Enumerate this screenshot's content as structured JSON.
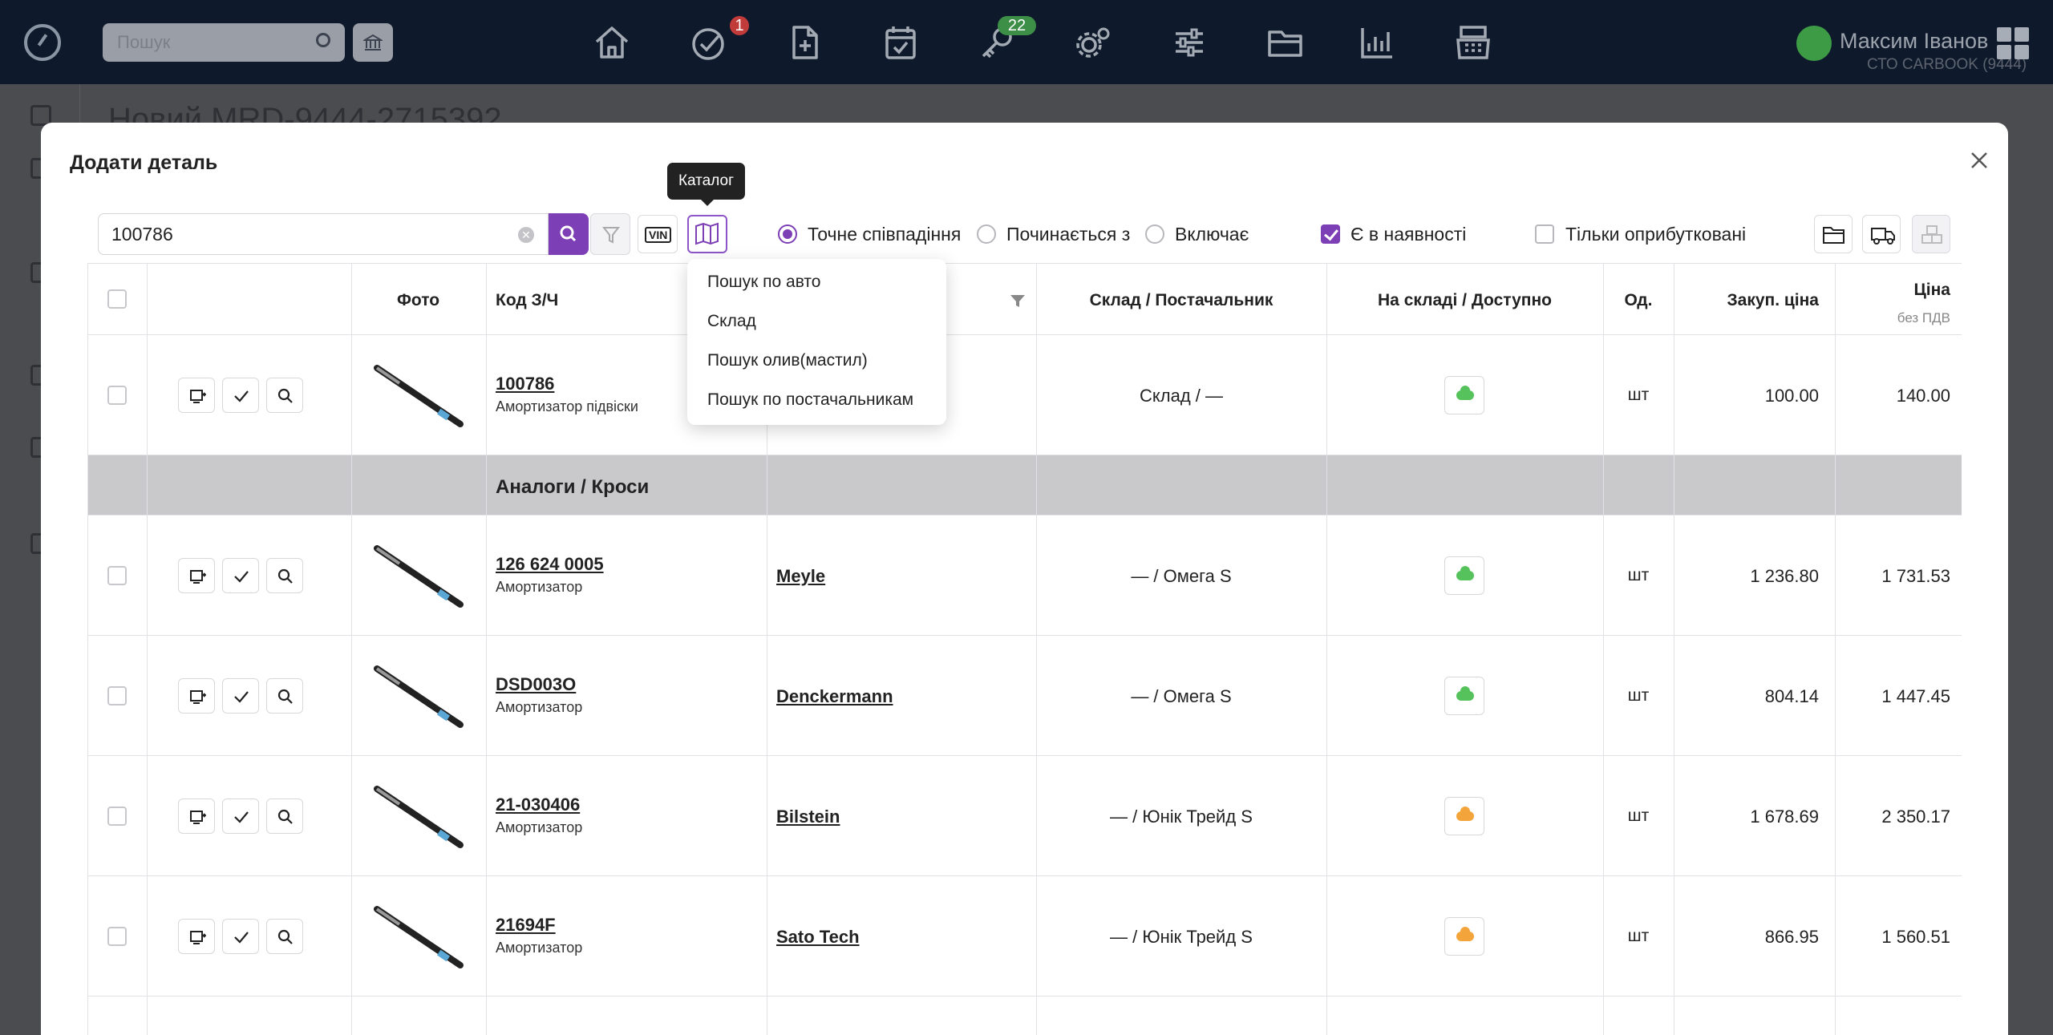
{
  "topbar": {
    "search_placeholder": "Пошук",
    "badge_tasks": "1",
    "badge_keys": "22",
    "user_name": "Максим Іванов",
    "org": "СТО CARBOOK (9444)"
  },
  "background": {
    "doc_title": "Новий MRD-9444-2715392"
  },
  "modal": {
    "title": "Додати деталь",
    "tooltip": "Каталог",
    "search_value": "100786",
    "vin_label": "VIN",
    "match_options": [
      "Точне співпадіння",
      "Починається з",
      "Включає"
    ],
    "selected_match": "Точне співпадіння",
    "in_stock_label": "Є в наявності",
    "in_stock_checked": true,
    "only_received_label": "Тільки оприбутковані",
    "only_received_checked": false
  },
  "dropdown": {
    "items": [
      "Пошук по авто",
      "Склад",
      "Пошук олив(мастил)",
      "Пошук по постачальникам"
    ]
  },
  "table": {
    "headers": {
      "photo": "Фото",
      "code": "Код З/Ч",
      "stock": "Склад / Постачальник",
      "avail": "На складі / Доступно",
      "unit": "Од.",
      "purchase": "Закуп. ціна",
      "price": "Ціна",
      "price_sub": "без ПДВ"
    },
    "analogs_title": "Аналоги / Кроси",
    "main_row": {
      "code": "100786",
      "desc": "Амортизатор підвіски",
      "brand": "",
      "stock": "Склад / —",
      "status_color": "#56c25c",
      "unit": "шт",
      "purchase": "100.00",
      "price": "140.00"
    },
    "rows": [
      {
        "code": "126 624 0005",
        "desc": "Амортизатор",
        "brand": "Meyle",
        "stock": "— / Омега S",
        "status_color": "#56c25c",
        "unit": "шт",
        "purchase": "1 236.80",
        "price": "1 731.53"
      },
      {
        "code": "DSD003O",
        "desc": "Амортизатор",
        "brand": "Denckermann",
        "stock": "— / Омега S",
        "status_color": "#56c25c",
        "unit": "шт",
        "purchase": "804.14",
        "price": "1 447.45"
      },
      {
        "code": "21-030406",
        "desc": "Амортизатор",
        "brand": "Bilstein",
        "stock": "— / Юнік Трейд S",
        "status_color": "#f3a53b",
        "unit": "шт",
        "purchase": "1 678.69",
        "price": "2 350.17"
      },
      {
        "code": "21694F",
        "desc": "Амортизатор",
        "brand": "Sato Tech",
        "stock": "— / Юнік Трейд S",
        "status_color": "#f3a53b",
        "unit": "шт",
        "purchase": "866.95",
        "price": "1 560.51"
      }
    ]
  }
}
